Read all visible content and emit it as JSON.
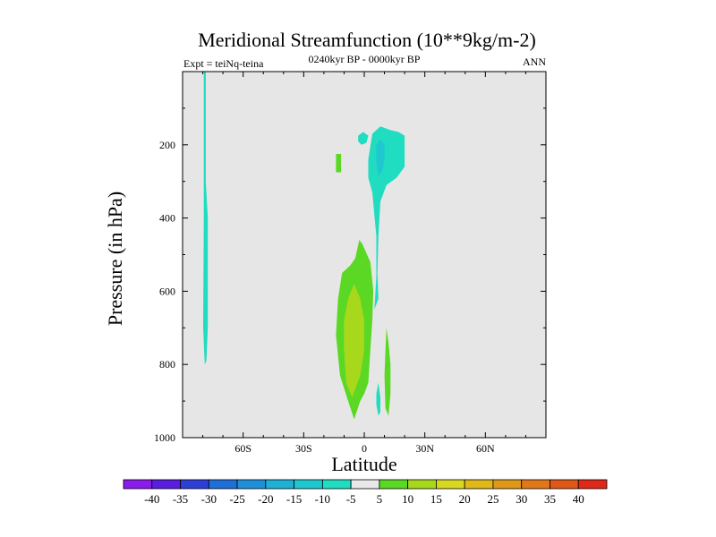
{
  "chart_data": {
    "type": "contour",
    "title": "Meridional Streamfunction (10**9kg/m-2)",
    "subtitle": "0240kyr BP - 0000kyr BP",
    "left_label": "Expt = teiNq-teina",
    "right_label": "ANN",
    "xlabel": "Latitude",
    "ylabel": "Pressure (in hPa)",
    "xlim": [
      -90,
      90
    ],
    "ylim": [
      1000,
      0
    ],
    "x_ticks": [
      {
        "value": -60,
        "label": "60S"
      },
      {
        "value": -30,
        "label": "30S"
      },
      {
        "value": 0,
        "label": "0"
      },
      {
        "value": 30,
        "label": "30N"
      },
      {
        "value": 60,
        "label": "60N"
      }
    ],
    "y_ticks": [
      {
        "value": 200,
        "label": "200"
      },
      {
        "value": 400,
        "label": "400"
      },
      {
        "value": 600,
        "label": "600"
      },
      {
        "value": 800,
        "label": "800"
      },
      {
        "value": 1000,
        "label": "1000"
      }
    ],
    "background_color": "#e6e6e6",
    "colorbar": {
      "colors": [
        "#8a1be8",
        "#5a1ee0",
        "#2f3fd6",
        "#1f6fd8",
        "#1f90d8",
        "#1fb0d8",
        "#1fc8d0",
        "#20dcc0",
        "#e8e8e8",
        "#5ad824",
        "#a8d81c",
        "#d8d820",
        "#e0b818",
        "#e09818",
        "#e07818",
        "#e05818",
        "#e02818"
      ],
      "labels": [
        "-40",
        "-35",
        "-30",
        "-25",
        "-20",
        "-15",
        "-10",
        "-5",
        "5",
        "10",
        "15",
        "20",
        "25",
        "30",
        "35",
        "40"
      ]
    },
    "regions": [
      {
        "name": "neg-5-sh-column",
        "level": -5,
        "color": "#20dcc0",
        "points": [
          [
            -79.5,
            0
          ],
          [
            -78.5,
            0
          ],
          [
            -78.5,
            300
          ],
          [
            -77.5,
            400
          ],
          [
            -77.5,
            700
          ],
          [
            -78.2,
            790
          ],
          [
            -79,
            800
          ],
          [
            -79.8,
            700
          ],
          [
            -79.5,
            400
          ]
        ]
      },
      {
        "name": "pos-5-small-patch",
        "level": 5,
        "color": "#5ad824",
        "points": [
          [
            -14,
            225
          ],
          [
            -11.5,
            225
          ],
          [
            -11.5,
            275
          ],
          [
            -14,
            275
          ]
        ]
      },
      {
        "name": "neg-5-tiny-patch",
        "level": -5,
        "color": "#20dcc0",
        "points": [
          [
            -3,
            175
          ],
          [
            -0.5,
            165
          ],
          [
            2,
            175
          ],
          [
            1,
            195
          ],
          [
            -1.5,
            200
          ],
          [
            -3,
            190
          ]
        ]
      },
      {
        "name": "neg-5-upper-cell",
        "level": -5,
        "color": "#20dcc0",
        "points": [
          [
            2,
            240
          ],
          [
            4,
            170
          ],
          [
            8,
            150
          ],
          [
            13,
            160
          ],
          [
            17,
            165
          ],
          [
            20,
            175
          ],
          [
            20,
            260
          ],
          [
            16,
            290
          ],
          [
            11,
            310
          ],
          [
            8,
            355
          ],
          [
            7,
            450
          ],
          [
            6.5,
            550
          ],
          [
            7,
            620
          ],
          [
            5,
            650
          ],
          [
            6,
            560
          ],
          [
            6,
            450
          ],
          [
            4,
            330
          ],
          [
            2,
            290
          ]
        ]
      },
      {
        "name": "neg-10-core",
        "level": -10,
        "color": "#1fc8d0",
        "points": [
          [
            6,
            200
          ],
          [
            8,
            185
          ],
          [
            10,
            200
          ],
          [
            10,
            240
          ],
          [
            9,
            270
          ],
          [
            7,
            285
          ],
          [
            6,
            250
          ]
        ]
      },
      {
        "name": "pos-5-main-cell",
        "level": 5,
        "color": "#5ad824",
        "points": [
          [
            -2.5,
            460
          ],
          [
            -1,
            470
          ],
          [
            3,
            520
          ],
          [
            4.5,
            600
          ],
          [
            4,
            680
          ],
          [
            3,
            760
          ],
          [
            2,
            850
          ],
          [
            0,
            880
          ],
          [
            -2,
            900
          ],
          [
            -5,
            950
          ],
          [
            -8,
            900
          ],
          [
            -12,
            830
          ],
          [
            -14,
            720
          ],
          [
            -13,
            620
          ],
          [
            -11,
            550
          ],
          [
            -7,
            530
          ],
          [
            -4.5,
            510
          ]
        ]
      },
      {
        "name": "pos-10-main-core",
        "level": 10,
        "color": "#a8d81c",
        "points": [
          [
            -5,
            580
          ],
          [
            -2,
            620
          ],
          [
            0,
            680
          ],
          [
            0,
            760
          ],
          [
            -2,
            830
          ],
          [
            -6,
            890
          ],
          [
            -9,
            850
          ],
          [
            -10,
            760
          ],
          [
            -10,
            680
          ],
          [
            -8,
            620
          ]
        ]
      },
      {
        "name": "pos-5-nh-column",
        "level": 5,
        "color": "#5ad824",
        "points": [
          [
            11,
            700
          ],
          [
            12,
            740
          ],
          [
            13,
            800
          ],
          [
            13,
            880
          ],
          [
            12,
            940
          ],
          [
            10.5,
            920
          ],
          [
            10,
            830
          ],
          [
            10.5,
            760
          ]
        ]
      },
      {
        "name": "neg-5-nh-sliver",
        "level": -5,
        "color": "#20dcc0",
        "points": [
          [
            7,
            850
          ],
          [
            8,
            890
          ],
          [
            8,
            930
          ],
          [
            7,
            940
          ],
          [
            6,
            910
          ],
          [
            6,
            880
          ]
        ]
      }
    ]
  }
}
